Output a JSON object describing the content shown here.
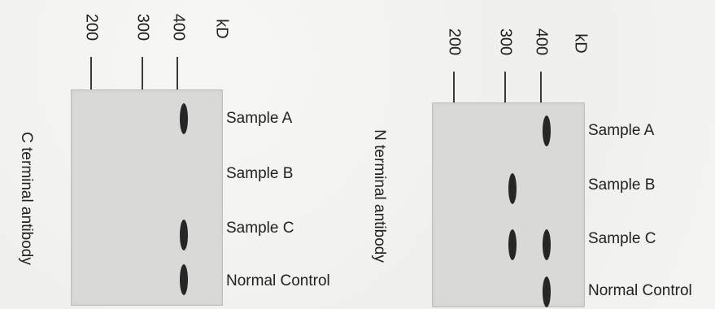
{
  "left_panel": {
    "antibody_label": "C terminal antibody",
    "unit": "kD",
    "markers": [
      "200",
      "300",
      "400"
    ],
    "samples": [
      "Sample A",
      "Sample B",
      "Sample C",
      "Normal Control"
    ]
  },
  "right_panel": {
    "antibody_label": "N terminal antibody",
    "unit": "kD",
    "markers": [
      "200",
      "300",
      "400"
    ],
    "samples": [
      "Sample A",
      "Sample B",
      "Sample C",
      "Normal Control"
    ]
  }
}
